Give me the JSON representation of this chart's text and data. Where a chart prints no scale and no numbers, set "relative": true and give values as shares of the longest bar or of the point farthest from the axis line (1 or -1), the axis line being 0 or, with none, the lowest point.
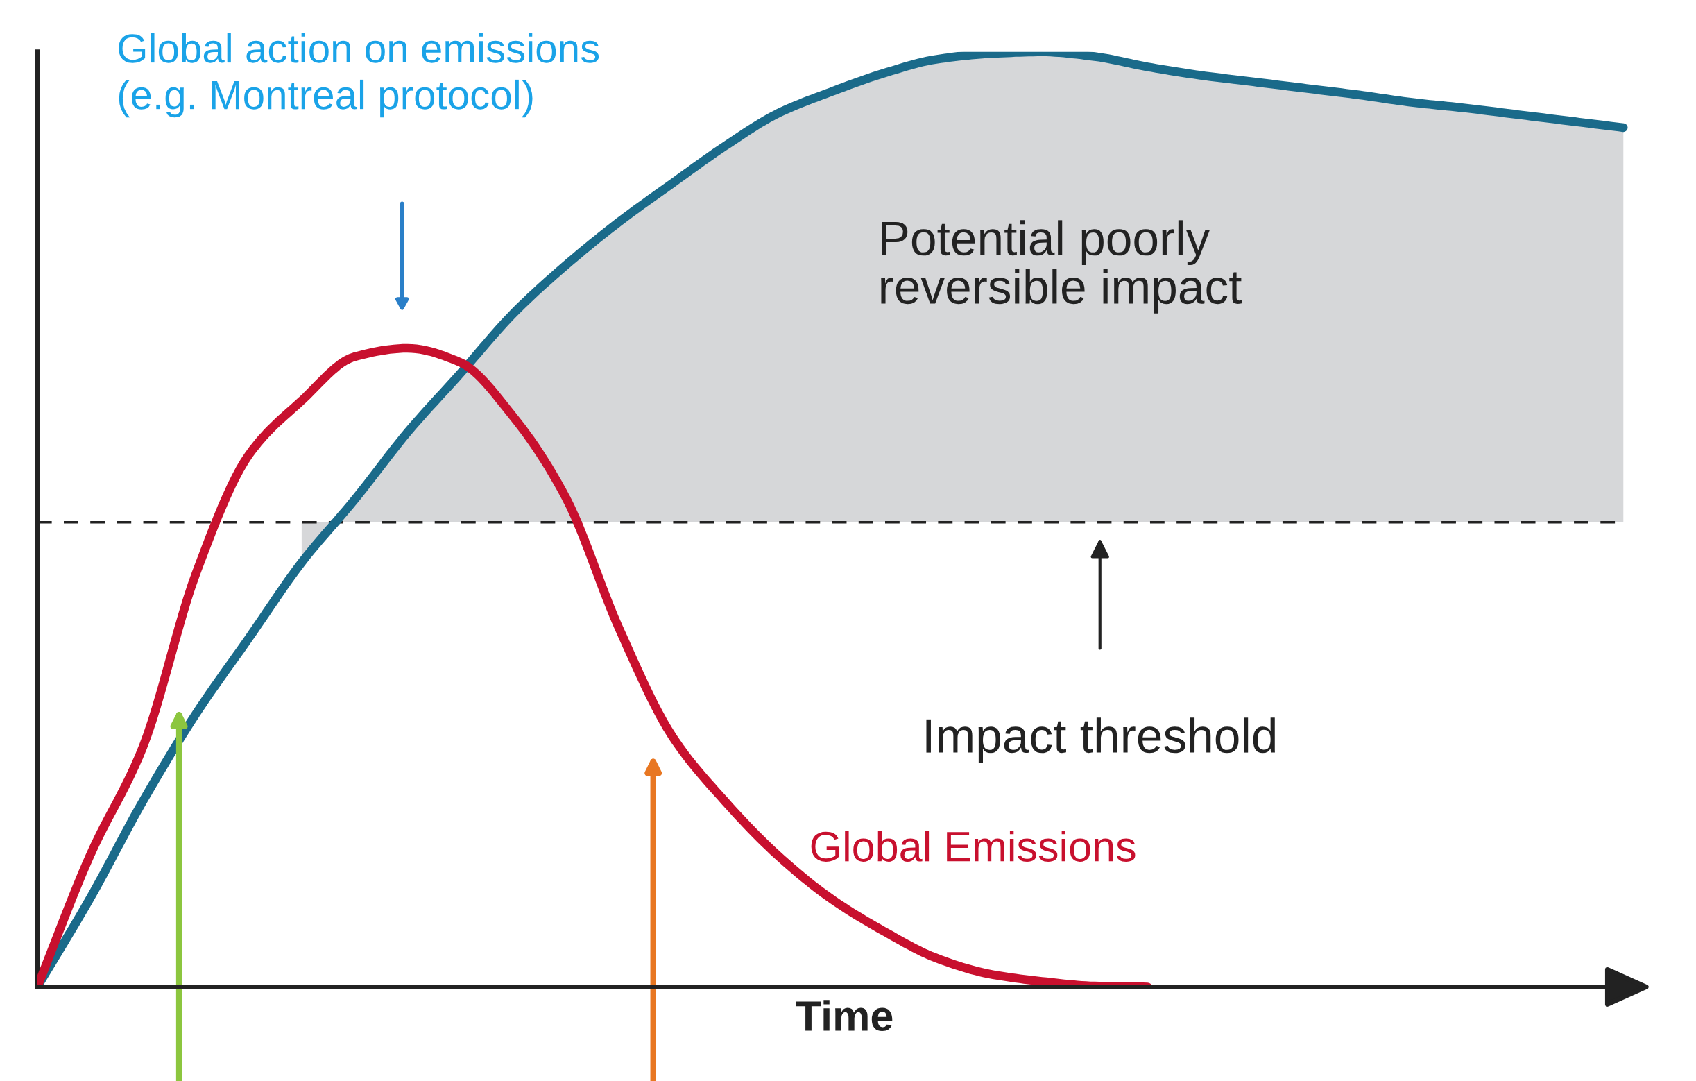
{
  "chart_data": {
    "type": "line",
    "relative": true,
    "xlabel": "Time",
    "categories": [
      null,
      null,
      null,
      null,
      null,
      null,
      null,
      null,
      null,
      null,
      null,
      null,
      null,
      null,
      null,
      null,
      null,
      null,
      null,
      null,
      null,
      null,
      null,
      null,
      null,
      null,
      null,
      null,
      null,
      null,
      null
    ],
    "series": [
      {
        "type": "area",
        "color": "#d6d7d9",
        "values": [
          null,
          null,
          null,
          null,
          null,
          0.454,
          0.521,
          0.593,
          0.656,
          0.72,
          0.772,
          0.818,
          0.859,
          0.899,
          0.934,
          0.957,
          0.977,
          0.992,
          0.998,
          1.0,
          0.995,
          0.984,
          0.975,
          0.968,
          0.961,
          0.954,
          0.946,
          0.94,
          0.933,
          0.926,
          0.919
        ]
      },
      {
        "color": "#1a6a8a",
        "values": [
          0,
          0.095,
          0.199,
          0.292,
          0.373,
          0.454,
          0.521,
          0.593,
          0.656,
          0.72,
          0.772,
          0.818,
          0.859,
          0.899,
          0.934,
          0.957,
          0.977,
          0.992,
          0.998,
          1.0,
          0.995,
          0.984,
          0.975,
          0.968,
          0.961,
          0.954,
          0.946,
          0.94,
          0.933,
          0.926,
          0.919
        ]
      },
      {
        "name": "Global Emissions",
        "color": "#c8102e",
        "values": [
          0,
          0.141,
          0.257,
          0.442,
          0.569,
          0.627,
          0.674,
          0.683,
          0.668,
          0.61,
          0.523,
          0.384,
          0.269,
          0.199,
          0.141,
          0.095,
          0.06,
          0.031,
          0.014,
          0.006,
          0.001,
          0,
          null,
          null,
          null,
          null,
          null,
          null,
          null,
          null,
          null
        ]
      }
    ],
    "ref_lines": [
      {
        "axis": "y",
        "value": 0.497,
        "label": "Impact threshold",
        "color": "#222222",
        "line_style": "dashed"
      }
    ],
    "annotations": [
      "Global action on emissions\n(e.g. Montreal protocol)",
      "Potential poorly\nreversible impact"
    ],
    "grid": false
  }
}
